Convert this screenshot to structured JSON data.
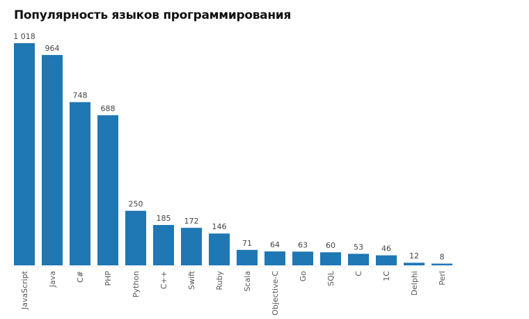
{
  "chart_data": {
    "type": "bar",
    "title": "Популярность языков программирования",
    "xlabel": "",
    "ylabel": "",
    "categories": [
      "JavaScript",
      "Java",
      "C#",
      "PHP",
      "Python",
      "C++",
      "Swift",
      "Ruby",
      "Scala",
      "Objective-C",
      "Go",
      "SQL",
      "C",
      "1C",
      "Delphi",
      "Perl"
    ],
    "values": [
      1018,
      964,
      748,
      688,
      250,
      185,
      172,
      146,
      71,
      64,
      63,
      60,
      53,
      46,
      12,
      8
    ],
    "value_labels": [
      "1 018",
      "964",
      "748",
      "688",
      "250",
      "185",
      "172",
      "146",
      "71",
      "64",
      "63",
      "60",
      "53",
      "46",
      "12",
      "8"
    ],
    "ylim": [
      0,
      1018
    ],
    "grid": false,
    "bar_color": "#1f77b4"
  }
}
